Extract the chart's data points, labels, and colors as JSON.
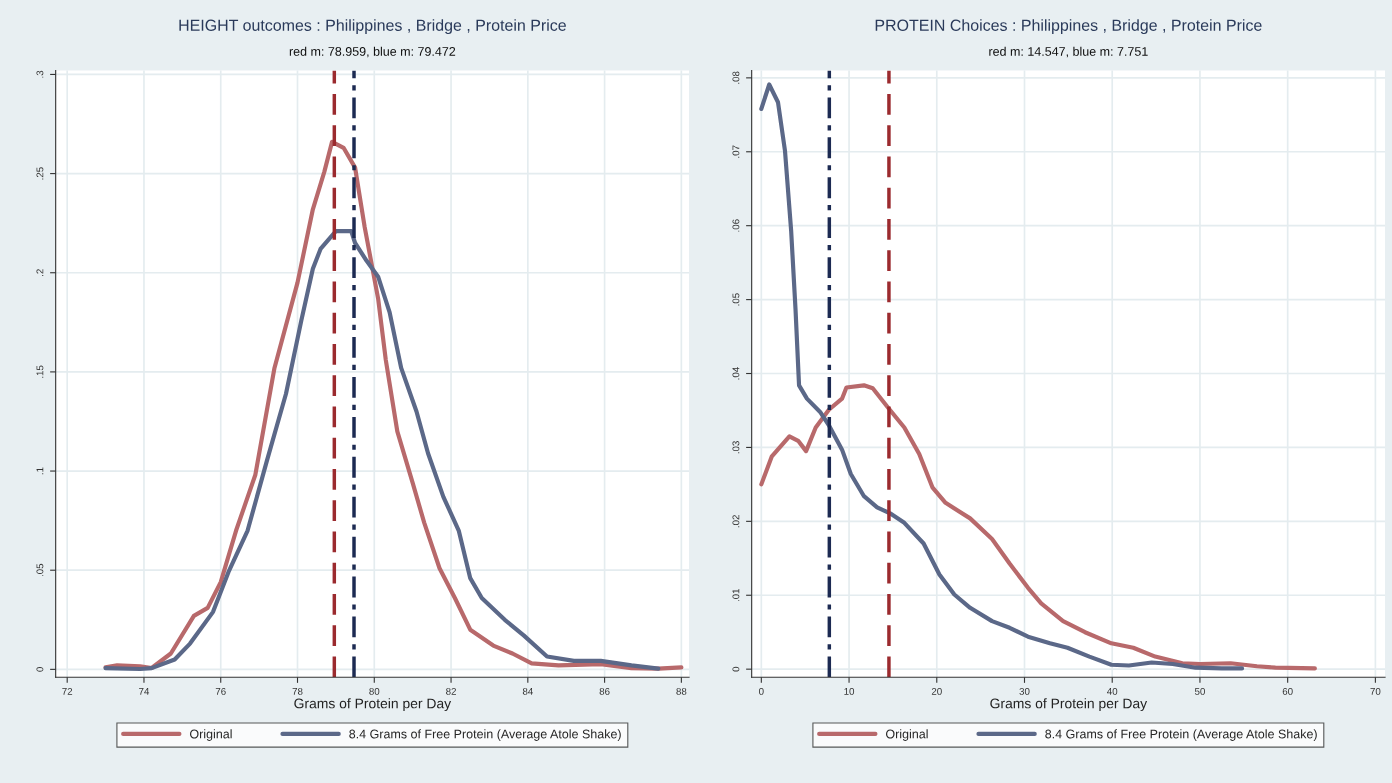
{
  "chart_data": [
    {
      "type": "line",
      "title": "HEIGHT outcomes : Philippines , Bridge , Protein Price",
      "subtitle": "red m: 78.959, blue m: 79.472",
      "xlabel": "Grams of Protein per Day",
      "xlim": [
        71.7,
        88.2
      ],
      "xticks": [
        72,
        74,
        76,
        78,
        80,
        82,
        84,
        86,
        88
      ],
      "ylim": [
        -0.004,
        0.302
      ],
      "yticks": [
        {
          "value": 0,
          "label": "0"
        },
        {
          "value": 0.05,
          "label": ".05"
        },
        {
          "value": 0.1,
          "label": ".1"
        },
        {
          "value": 0.15,
          "label": ".15"
        },
        {
          "value": 0.2,
          "label": ".2"
        },
        {
          "value": 0.25,
          "label": ".25"
        },
        {
          "value": 0.3,
          "label": ".3"
        }
      ],
      "grid": true,
      "legend": "bottom",
      "marker": "none",
      "line_style": "solid",
      "ref_lines": [
        {
          "axis": "x",
          "value": 78.959,
          "color": "#9b2a2e",
          "line_style": "dashed"
        },
        {
          "axis": "x",
          "value": 79.472,
          "color": "#1c2a52",
          "line_style": "dashdot"
        }
      ],
      "series": [
        {
          "name": "Original",
          "color": "#b8696b",
          "x": [
            73.0,
            73.3,
            73.9,
            74.2,
            74.7,
            75.3,
            75.66,
            76.0,
            76.4,
            76.9,
            77.4,
            78.0,
            78.4,
            78.7,
            78.9,
            79.2,
            79.5,
            79.75,
            80.1,
            80.3,
            80.6,
            81.0,
            81.3,
            81.7,
            82.1,
            82.5,
            83.1,
            83.6,
            84.1,
            84.8,
            85.9,
            86.7,
            87.4,
            88.0
          ],
          "values": [
            0.001,
            0.002,
            0.0015,
            0.0007,
            0.008,
            0.027,
            0.031,
            0.044,
            0.07,
            0.098,
            0.152,
            0.195,
            0.232,
            0.251,
            0.266,
            0.263,
            0.253,
            0.223,
            0.187,
            0.156,
            0.12,
            0.094,
            0.074,
            0.051,
            0.036,
            0.02,
            0.012,
            0.008,
            0.003,
            0.002,
            0.0026,
            0.0006,
            0.0004,
            0.001
          ]
        },
        {
          "name": "8.4 Grams of Free Protein (Average Atole Shake)",
          "color": "#5b6888",
          "x": [
            73.0,
            73.9,
            74.2,
            74.8,
            75.2,
            75.8,
            76.2,
            76.7,
            77.2,
            77.7,
            78.1,
            78.4,
            78.6,
            79.0,
            79.4,
            79.5,
            79.8,
            80.1,
            80.4,
            80.7,
            81.1,
            81.4,
            81.8,
            82.2,
            82.5,
            82.8,
            83.4,
            83.9,
            84.5,
            85.2,
            85.9,
            86.7,
            87.4
          ],
          "values": [
            0.0006,
            0.0002,
            0.0006,
            0.005,
            0.013,
            0.029,
            0.049,
            0.07,
            0.105,
            0.139,
            0.176,
            0.202,
            0.212,
            0.221,
            0.221,
            0.215,
            0.206,
            0.198,
            0.18,
            0.152,
            0.13,
            0.109,
            0.087,
            0.07,
            0.046,
            0.036,
            0.025,
            0.017,
            0.0065,
            0.0043,
            0.0043,
            0.002,
            0.0004
          ]
        }
      ]
    },
    {
      "type": "line",
      "title": "PROTEIN Choices : Philippines , Bridge , Protein Price",
      "subtitle": "red m: 14.547, blue m: 7.751",
      "xlabel": "Grams of Protein per Day",
      "xlim": [
        -1.1,
        71.1
      ],
      "xticks": [
        0,
        10,
        20,
        30,
        40,
        50,
        60,
        70
      ],
      "ylim": [
        -0.0011,
        0.081
      ],
      "yticks": [
        {
          "value": 0,
          "label": "0"
        },
        {
          "value": 0.01,
          "label": ".01"
        },
        {
          "value": 0.02,
          "label": ".02"
        },
        {
          "value": 0.03,
          "label": ".03"
        },
        {
          "value": 0.04,
          "label": ".04"
        },
        {
          "value": 0.05,
          "label": ".05"
        },
        {
          "value": 0.06,
          "label": ".06"
        },
        {
          "value": 0.07,
          "label": ".07"
        },
        {
          "value": 0.08,
          "label": ".08"
        }
      ],
      "grid": true,
      "legend": "bottom",
      "marker": "none",
      "line_style": "solid",
      "ref_lines": [
        {
          "axis": "x",
          "value": 14.547,
          "color": "#9b2a2e",
          "line_style": "dashed"
        },
        {
          "axis": "x",
          "value": 7.751,
          "color": "#1c2a52",
          "line_style": "dashdot"
        }
      ],
      "series": [
        {
          "name": "Original",
          "color": "#b8696b",
          "x": [
            0,
            1.2,
            3.2,
            4.2,
            5.1,
            6.2,
            7.7,
            9.2,
            9.7,
            11.7,
            12.7,
            14.5,
            16.3,
            18.0,
            19.5,
            21.0,
            23.8,
            26.3,
            28.3,
            30.4,
            31.9,
            34.4,
            36.9,
            39.9,
            42.4,
            44.9,
            48.0,
            50.0,
            53.5,
            56.5,
            58.6,
            63.1
          ],
          "values": [
            0.025,
            0.0288,
            0.0315,
            0.0309,
            0.0295,
            0.0327,
            0.0351,
            0.0366,
            0.0381,
            0.0384,
            0.038,
            0.0353,
            0.0327,
            0.0291,
            0.0246,
            0.0225,
            0.0204,
            0.0176,
            0.0143,
            0.011,
            0.0089,
            0.0065,
            0.005,
            0.0035,
            0.0029,
            0.0017,
            0.0008,
            0.0007,
            0.0008,
            0.0004,
            0.0002,
            0.0001
          ]
        },
        {
          "name": "8.4 Grams of Free Protein (Average Atole Shake)",
          "color": "#5b6888",
          "x": [
            0,
            0.9,
            1.9,
            2.7,
            3.4,
            3.9,
            4.3,
            5.2,
            6.7,
            7.7,
            9.2,
            10.2,
            11.7,
            13.2,
            14.8,
            16.3,
            18.5,
            20.3,
            22.0,
            23.8,
            26.3,
            28.3,
            30.4,
            32.9,
            34.9,
            37.4,
            39.9,
            41.9,
            44.5,
            46.9,
            49.5,
            52.5,
            54.8
          ],
          "values": [
            0.0758,
            0.0791,
            0.0767,
            0.0701,
            0.0593,
            0.0486,
            0.0384,
            0.0366,
            0.0348,
            0.033,
            0.0297,
            0.0264,
            0.0234,
            0.0219,
            0.021,
            0.0198,
            0.017,
            0.0128,
            0.0101,
            0.0083,
            0.0065,
            0.0056,
            0.0044,
            0.0035,
            0.0029,
            0.0017,
            0.0006,
            0.0005,
            0.0009,
            0.0007,
            0.0002,
            0.0001,
            0.0001
          ]
        }
      ]
    }
  ]
}
